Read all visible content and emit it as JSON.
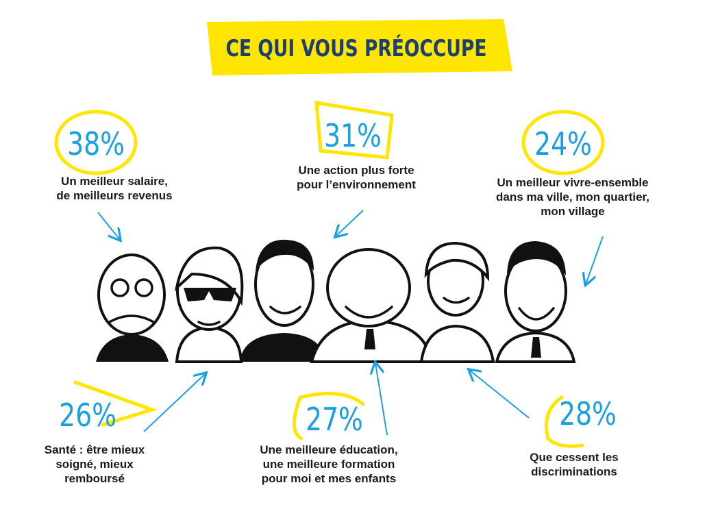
{
  "header": {
    "title": "CE QUI VOUS PRÉOCCUPE"
  },
  "items": [
    {
      "value": "38%",
      "label": [
        "Un meilleur salaire,",
        "de meilleurs revenus"
      ]
    },
    {
      "value": "31%",
      "label": [
        "Une action plus forte",
        "pour l’environnement"
      ]
    },
    {
      "value": "24%",
      "label": [
        "Un meilleur vivre-ensemble",
        "dans ma ville, mon quartier,",
        "mon village"
      ]
    },
    {
      "value": "26%",
      "label": [
        "Santé : être mieux",
        "soigné, mieux",
        "remboursé"
      ]
    },
    {
      "value": "27%",
      "label": [
        "Une meilleure éducation,",
        "une meilleure formation",
        "pour moi et mes enfants"
      ]
    },
    {
      "value": "28%",
      "label": [
        "Que cessent les",
        "discriminations"
      ]
    }
  ]
}
